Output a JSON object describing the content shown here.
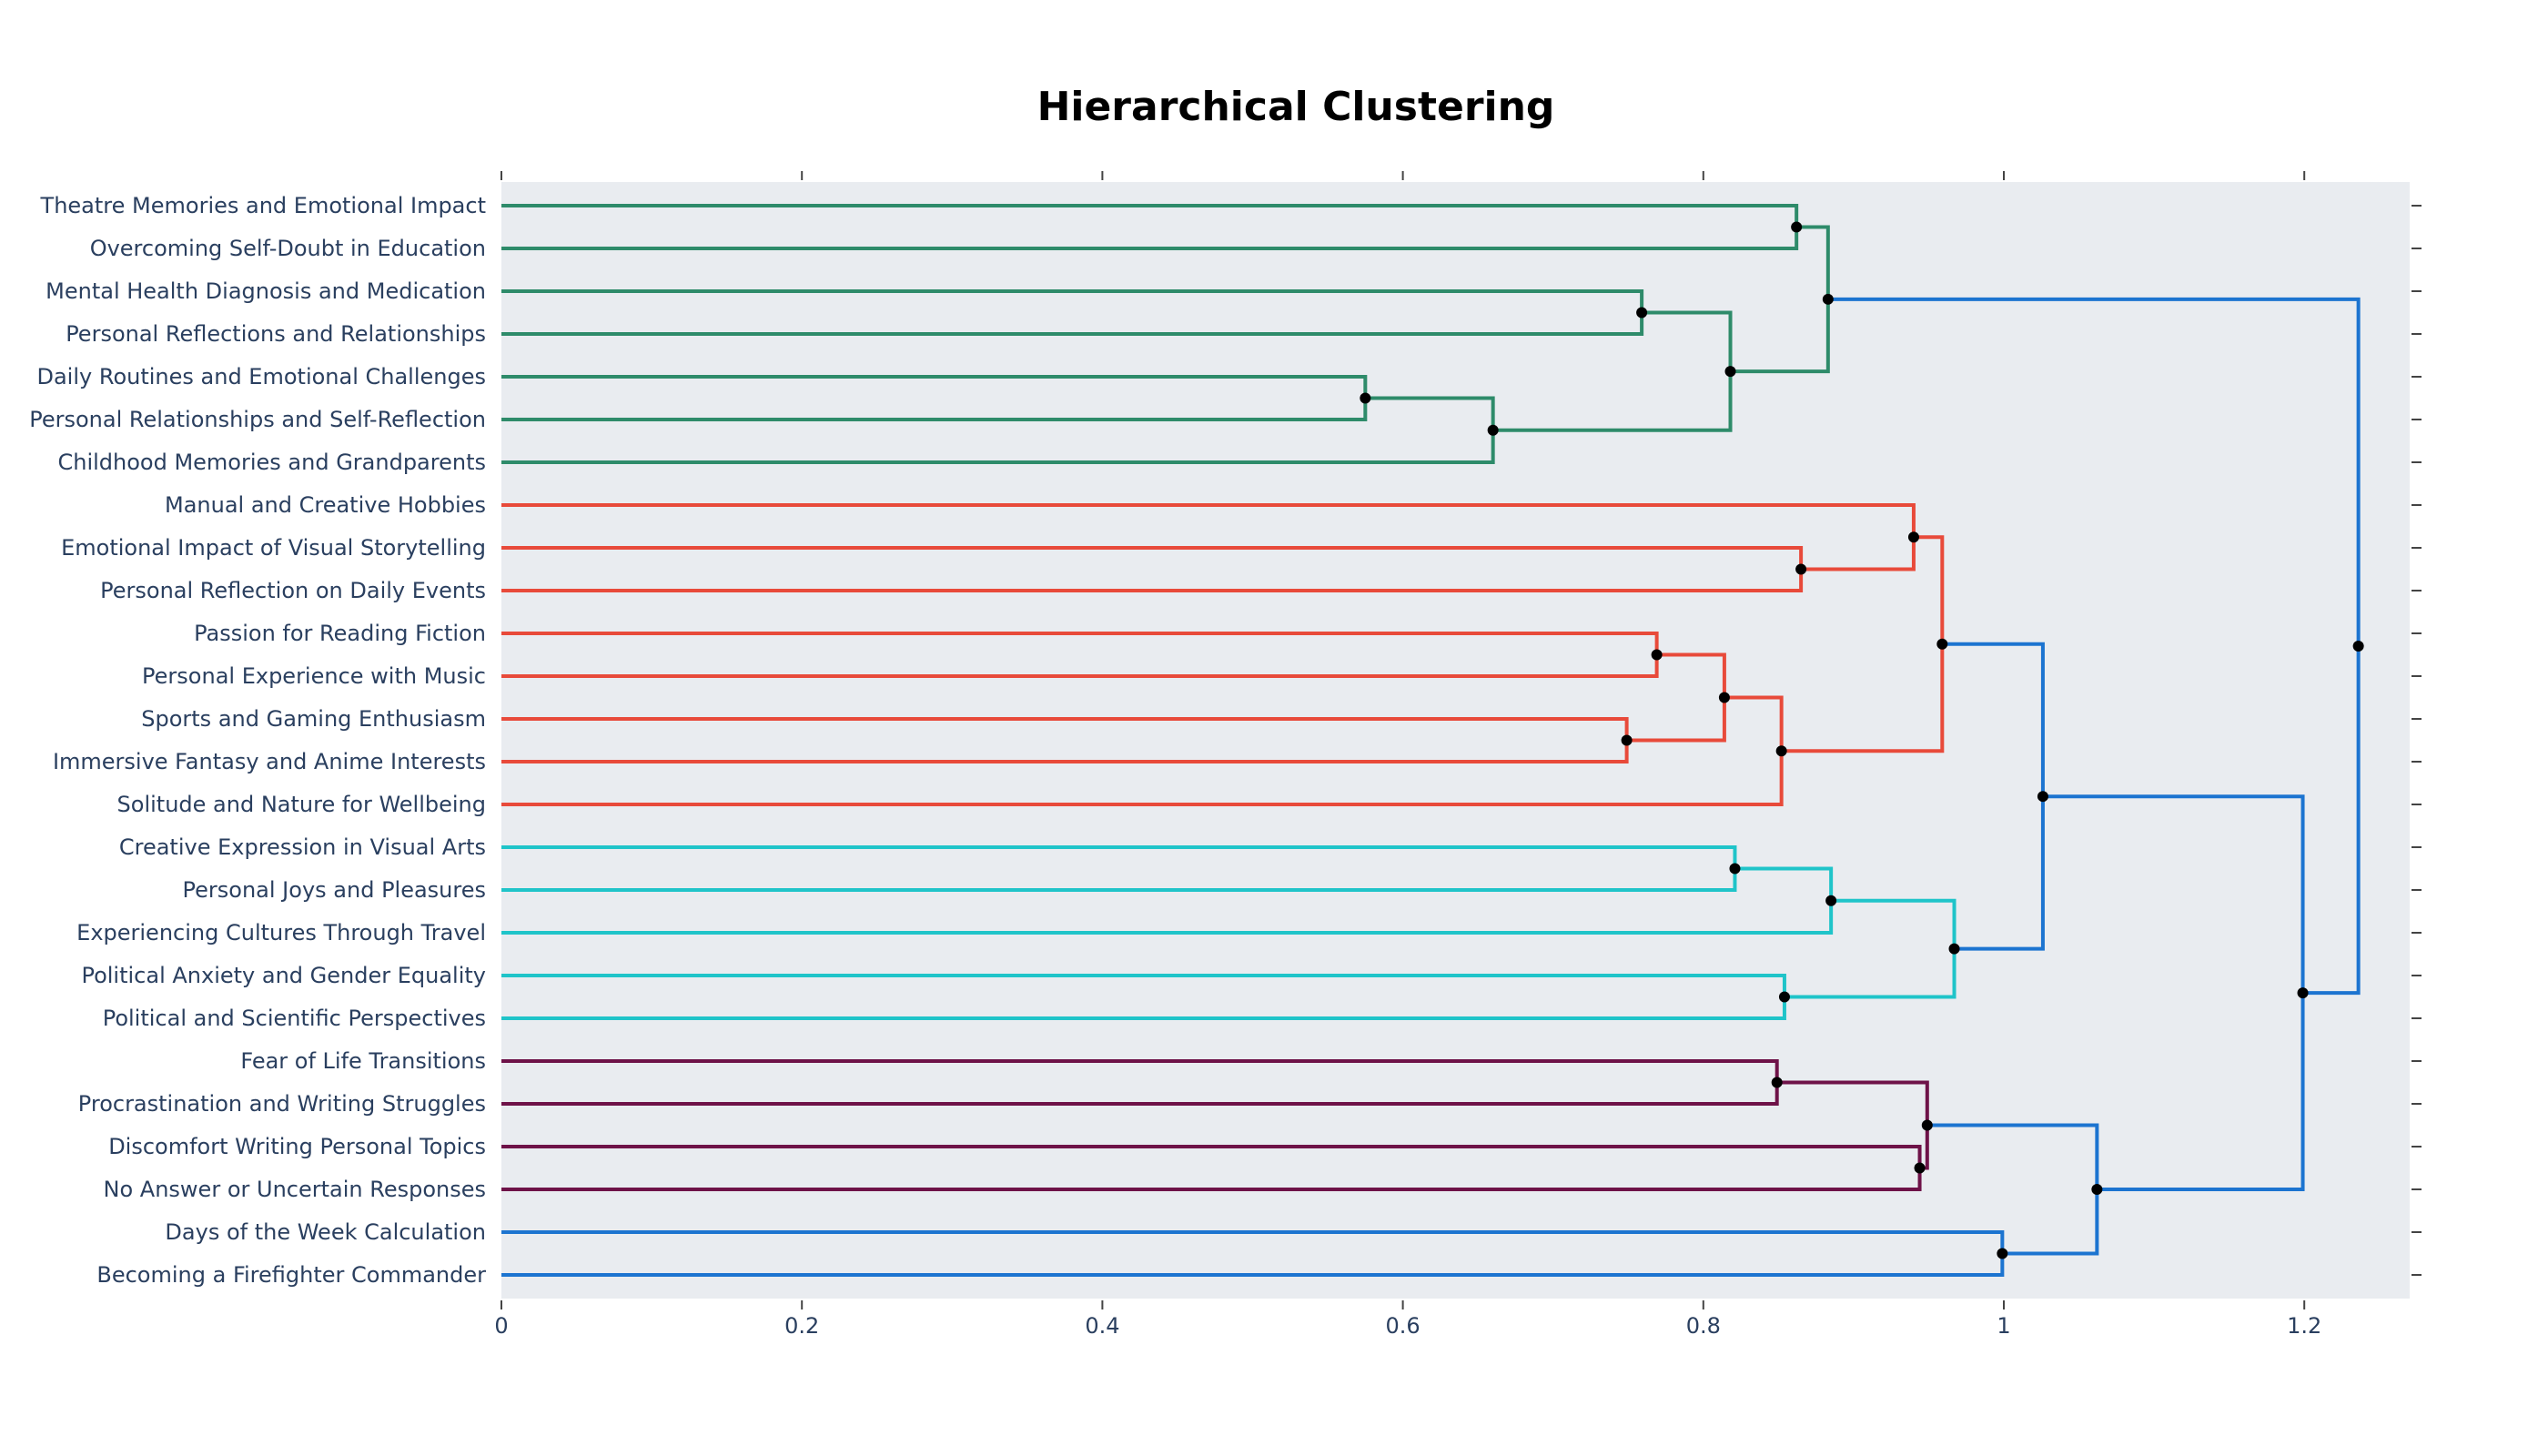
{
  "chart_data": {
    "type": "dendrogram",
    "title": "Hierarchical Clustering",
    "orientation": "horizontal",
    "xlabel": "",
    "ylabel": "",
    "xlim": [
      0,
      1.27
    ],
    "xticks": [
      0,
      0.2,
      0.4,
      0.6,
      0.8,
      1,
      1.2
    ],
    "xtick_labels": [
      "0",
      "0.2",
      "0.4",
      "0.6",
      "0.8",
      "1",
      "1.2"
    ],
    "grid": false,
    "colors": {
      "background": "#ffffff",
      "plot_bg": "#e9ecf0",
      "axis_text": "#2a3f5f",
      "cluster_green": "#2e8b6a",
      "cluster_red": "#e84a3a",
      "cluster_cyan": "#1fc4c9",
      "cluster_purple": "#6e1248",
      "link_blue": "#1c74d0",
      "node": "#000000"
    },
    "leaves": [
      "Theatre Memories and Emotional Impact",
      "Overcoming Self-Doubt in Education",
      "Mental Health Diagnosis and Medication",
      "Personal Reflections and Relationships",
      "Daily Routines and Emotional Challenges",
      "Personal Relationships and Self-Reflection",
      "Childhood Memories and Grandparents",
      "Manual and Creative Hobbies",
      "Emotional Impact of Visual Storytelling",
      "Personal Reflection on Daily Events",
      "Passion for Reading Fiction",
      "Personal Experience with Music",
      "Sports and Gaming Enthusiasm",
      "Immersive Fantasy and Anime Interests",
      "Solitude and Nature for Wellbeing",
      "Creative Expression in Visual Arts",
      "Personal Joys and Pleasures",
      "Experiencing Cultures Through Travel",
      "Political Anxiety and Gender Equality",
      "Political and Scientific Perspectives",
      "Fear of Life Transitions",
      "Procrastination and Writing Struggles",
      "Discomfort Writing Personal Topics",
      "No Answer or Uncertain Responses",
      "Days of the Week Calculation",
      "Becoming a Firefighter Commander"
    ],
    "merges": [
      {
        "id": "n1",
        "children": [
          "L0",
          "L1"
        ],
        "distance": 0.862,
        "color": "cluster_green"
      },
      {
        "id": "n2",
        "children": [
          "L2",
          "L3"
        ],
        "distance": 0.759,
        "color": "cluster_green"
      },
      {
        "id": "n3",
        "children": [
          "L4",
          "L5"
        ],
        "distance": 0.575,
        "color": "cluster_green"
      },
      {
        "id": "n4",
        "children": [
          "n3",
          "L6"
        ],
        "distance": 0.66,
        "color": "cluster_green"
      },
      {
        "id": "n5",
        "children": [
          "n2",
          "n4"
        ],
        "distance": 0.818,
        "color": "cluster_green"
      },
      {
        "id": "n6",
        "children": [
          "n1",
          "n5"
        ],
        "distance": 0.883,
        "color": "cluster_green"
      },
      {
        "id": "n7",
        "children": [
          "L8",
          "L9"
        ],
        "distance": 0.865,
        "color": "cluster_red"
      },
      {
        "id": "n8",
        "children": [
          "L7",
          "n7"
        ],
        "distance": 0.94,
        "color": "cluster_red"
      },
      {
        "id": "n9",
        "children": [
          "L10",
          "L11"
        ],
        "distance": 0.769,
        "color": "cluster_red"
      },
      {
        "id": "n10",
        "children": [
          "L12",
          "L13"
        ],
        "distance": 0.749,
        "color": "cluster_red"
      },
      {
        "id": "n11",
        "children": [
          "n9",
          "n10"
        ],
        "distance": 0.814,
        "color": "cluster_red"
      },
      {
        "id": "n12",
        "children": [
          "n11",
          "L14"
        ],
        "distance": 0.852,
        "color": "cluster_red"
      },
      {
        "id": "n13",
        "children": [
          "n8",
          "n12"
        ],
        "distance": 0.959,
        "color": "cluster_red"
      },
      {
        "id": "n14",
        "children": [
          "L15",
          "L16"
        ],
        "distance": 0.821,
        "color": "cluster_cyan"
      },
      {
        "id": "n15",
        "children": [
          "n14",
          "L17"
        ],
        "distance": 0.885,
        "color": "cluster_cyan"
      },
      {
        "id": "n16",
        "children": [
          "L18",
          "L19"
        ],
        "distance": 0.854,
        "color": "cluster_cyan"
      },
      {
        "id": "n17",
        "children": [
          "n15",
          "n16"
        ],
        "distance": 0.967,
        "color": "cluster_cyan"
      },
      {
        "id": "n18",
        "children": [
          "L20",
          "L21"
        ],
        "distance": 0.849,
        "color": "cluster_purple"
      },
      {
        "id": "n19",
        "children": [
          "L22",
          "L23"
        ],
        "distance": 0.944,
        "color": "cluster_purple"
      },
      {
        "id": "n20",
        "children": [
          "n18",
          "n19"
        ],
        "distance": 0.949,
        "color": "cluster_purple"
      },
      {
        "id": "n21",
        "children": [
          "L24",
          "L25"
        ],
        "distance": 0.999,
        "color": "link_blue"
      },
      {
        "id": "n22",
        "children": [
          "n13",
          "n17"
        ],
        "distance": 1.026,
        "color": "link_blue"
      },
      {
        "id": "n23",
        "children": [
          "n20",
          "n21"
        ],
        "distance": 1.062,
        "color": "link_blue"
      },
      {
        "id": "n24",
        "children": [
          "n22",
          "n23"
        ],
        "distance": 1.199,
        "color": "link_blue"
      },
      {
        "id": "n25",
        "children": [
          "n6",
          "n24"
        ],
        "distance": 1.236,
        "color": "link_blue"
      }
    ]
  }
}
